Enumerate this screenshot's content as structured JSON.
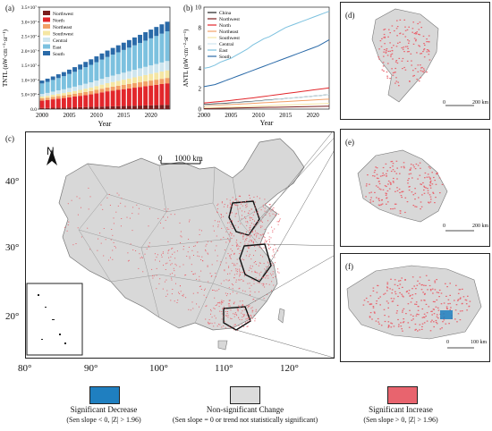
{
  "panel_a": {
    "label": "(a)",
    "ylabel": "TNTL (nW·cm⁻²·sr⁻¹)",
    "xlabel": "Year",
    "y_ticks": [
      "0.0",
      "5.0×10⁶",
      "1.0×10⁷",
      "1.5×10⁷",
      "2.0×10⁷",
      "2.5×10⁷",
      "3.0×10⁷",
      "3.5×10⁷"
    ],
    "x_ticks": [
      "2000",
      "2005",
      "2010",
      "2015",
      "2020"
    ],
    "legend": [
      "Northwest",
      "North",
      "Northeast",
      "Southwest",
      "Central",
      "East",
      "South"
    ],
    "colors": [
      "#7a1e1e",
      "#e2262b",
      "#f2a066",
      "#f5e6a3",
      "#cfe6ef",
      "#7cc1df",
      "#2a6aa8"
    ]
  },
  "panel_b": {
    "label": "(b)",
    "ylabel": "ANTL (nW·cm⁻²·sr⁻¹)",
    "xlabel": "Year",
    "y_ticks": [
      "0",
      "2",
      "4",
      "6",
      "8",
      "10"
    ],
    "x_ticks": [
      "2000",
      "2005",
      "2010",
      "2015",
      "2020"
    ],
    "legend": [
      "China",
      "Northwest",
      "North",
      "Northeast",
      "Southwest",
      "Central",
      "East",
      "South"
    ],
    "colors": [
      "#222222",
      "#7a1e1e",
      "#e2262b",
      "#f2a066",
      "#f5e6a3",
      "#cfe6ef",
      "#7cc1df",
      "#2a6aa8"
    ]
  },
  "chart_data": [
    {
      "type": "bar",
      "stacked": true,
      "categories": [
        2000,
        2001,
        2002,
        2003,
        2004,
        2005,
        2006,
        2007,
        2008,
        2009,
        2010,
        2011,
        2012,
        2013,
        2014,
        2015,
        2016,
        2017,
        2018,
        2019,
        2020,
        2021,
        2022,
        2023
      ],
      "series": [
        {
          "name": "Northwest",
          "values": [
            0.4,
            0.4,
            0.45,
            0.5,
            0.5,
            0.55,
            0.6,
            0.65,
            0.7,
            0.75,
            0.8,
            0.85,
            0.9,
            0.95,
            1.0,
            1.05,
            1.1,
            1.15,
            1.2,
            1.25,
            1.3,
            1.35,
            1.4,
            1.45
          ]
        },
        {
          "name": "North",
          "values": [
            2.5,
            2.7,
            2.9,
            3.1,
            3.3,
            3.5,
            3.7,
            3.9,
            4.1,
            4.3,
            4.6,
            4.9,
            5.2,
            5.4,
            5.6,
            5.8,
            6.0,
            6.2,
            6.4,
            6.6,
            6.8,
            7.0,
            7.2,
            7.4
          ]
        },
        {
          "name": "Northeast",
          "values": [
            0.8,
            0.8,
            0.85,
            0.9,
            0.9,
            0.95,
            1.0,
            1.05,
            1.1,
            1.15,
            1.2,
            1.25,
            1.3,
            1.35,
            1.4,
            1.45,
            1.5,
            1.55,
            1.6,
            1.65,
            1.7,
            1.75,
            1.8,
            1.85
          ]
        },
        {
          "name": "Southwest",
          "values": [
            0.6,
            0.65,
            0.7,
            0.75,
            0.8,
            0.85,
            0.9,
            1.0,
            1.1,
            1.2,
            1.3,
            1.4,
            1.5,
            1.6,
            1.7,
            1.8,
            1.9,
            2.0,
            2.1,
            2.2,
            2.3,
            2.4,
            2.5,
            2.6
          ]
        },
        {
          "name": "Central",
          "values": [
            0.9,
            1.0,
            1.1,
            1.2,
            1.3,
            1.4,
            1.5,
            1.6,
            1.7,
            1.8,
            1.9,
            2.0,
            2.1,
            2.2,
            2.3,
            2.4,
            2.5,
            2.6,
            2.7,
            2.8,
            2.9,
            3.0,
            3.1,
            3.2
          ]
        },
        {
          "name": "East",
          "values": [
            3.6,
            3.8,
            4.0,
            4.2,
            4.5,
            4.8,
            5.1,
            5.4,
            5.7,
            6.0,
            6.3,
            6.6,
            6.9,
            7.2,
            7.5,
            7.8,
            8.1,
            8.4,
            8.7,
            9.0,
            9.3,
            9.6,
            9.9,
            10.2
          ]
        },
        {
          "name": "South",
          "values": [
            1.0,
            1.1,
            1.2,
            1.3,
            1.4,
            1.5,
            1.6,
            1.7,
            1.8,
            1.9,
            2.0,
            2.1,
            2.2,
            2.3,
            2.4,
            2.5,
            2.6,
            2.7,
            2.8,
            2.9,
            3.0,
            3.1,
            3.2,
            3.3
          ]
        }
      ],
      "value_scale": 1000000,
      "xlabel": "Year",
      "ylabel": "TNTL (nW·cm⁻²·sr⁻¹)",
      "ylim": [
        0,
        35000000
      ]
    },
    {
      "type": "line",
      "x": [
        2000,
        2001,
        2002,
        2003,
        2004,
        2005,
        2006,
        2007,
        2008,
        2009,
        2010,
        2011,
        2012,
        2013,
        2014,
        2015,
        2016,
        2017,
        2018,
        2019,
        2020,
        2021,
        2022,
        2023
      ],
      "series": [
        {
          "name": "China",
          "values": [
            0.45,
            0.48,
            0.51,
            0.54,
            0.57,
            0.6,
            0.64,
            0.68,
            0.72,
            0.76,
            0.8,
            0.85,
            0.9,
            0.94,
            0.98,
            1.03,
            1.08,
            1.12,
            1.17,
            1.22,
            1.27,
            1.32,
            1.37,
            1.42
          ]
        },
        {
          "name": "Northwest",
          "values": [
            0.05,
            0.06,
            0.07,
            0.08,
            0.09,
            0.1,
            0.11,
            0.12,
            0.13,
            0.14,
            0.15,
            0.16,
            0.17,
            0.18,
            0.19,
            0.2,
            0.21,
            0.22,
            0.23,
            0.24,
            0.25,
            0.26,
            0.27,
            0.28
          ]
        },
        {
          "name": "North",
          "values": [
            0.6,
            0.65,
            0.7,
            0.75,
            0.8,
            0.86,
            0.92,
            0.98,
            1.04,
            1.1,
            1.17,
            1.24,
            1.31,
            1.38,
            1.45,
            1.52,
            1.59,
            1.66,
            1.73,
            1.8,
            1.87,
            1.94,
            2.01,
            2.08
          ]
        },
        {
          "name": "Northeast",
          "values": [
            0.35,
            0.37,
            0.39,
            0.41,
            0.43,
            0.45,
            0.47,
            0.5,
            0.53,
            0.56,
            0.59,
            0.62,
            0.65,
            0.68,
            0.71,
            0.74,
            0.77,
            0.8,
            0.83,
            0.86,
            0.89,
            0.92,
            0.95,
            0.98
          ]
        },
        {
          "name": "Southwest",
          "values": [
            0.15,
            0.16,
            0.17,
            0.18,
            0.19,
            0.2,
            0.22,
            0.24,
            0.26,
            0.28,
            0.3,
            0.32,
            0.34,
            0.36,
            0.38,
            0.4,
            0.42,
            0.44,
            0.46,
            0.48,
            0.5,
            0.52,
            0.54,
            0.56
          ]
        },
        {
          "name": "Central",
          "values": [
            0.4,
            0.43,
            0.46,
            0.49,
            0.52,
            0.56,
            0.6,
            0.64,
            0.68,
            0.72,
            0.77,
            0.82,
            0.87,
            0.92,
            0.97,
            1.02,
            1.07,
            1.12,
            1.17,
            1.22,
            1.27,
            1.32,
            1.37,
            1.42
          ]
        },
        {
          "name": "East",
          "values": [
            4.0,
            4.1,
            4.3,
            4.6,
            4.8,
            5.0,
            5.3,
            5.6,
            5.9,
            6.3,
            6.6,
            6.9,
            7.1,
            7.4,
            7.7,
            8.0,
            8.2,
            8.4,
            8.6,
            8.8,
            9.0,
            9.2,
            9.4,
            9.6
          ]
        },
        {
          "name": "South",
          "values": [
            2.2,
            2.3,
            2.4,
            2.6,
            2.8,
            3.0,
            3.2,
            3.4,
            3.6,
            3.8,
            4.0,
            4.2,
            4.4,
            4.6,
            4.8,
            5.0,
            5.2,
            5.4,
            5.6,
            5.8,
            6.0,
            6.2,
            6.5,
            6.8
          ]
        }
      ],
      "xlabel": "Year",
      "ylabel": "ANTL (nW·cm⁻²·sr⁻¹)",
      "ylim": [
        0,
        10
      ]
    }
  ],
  "panel_c": {
    "label": "(c)",
    "north_label": "N",
    "scale_label": "1000 km",
    "scale_zero": "0",
    "lat_ticks": [
      "40°",
      "30°",
      "20°"
    ],
    "lon_ticks": [
      "80°",
      "90°",
      "100°",
      "110°",
      "120°"
    ]
  },
  "panel_d": {
    "label": "(d)",
    "scale_zero": "0",
    "scale_label": "200 km"
  },
  "panel_e": {
    "label": "(e)",
    "scale_zero": "0",
    "scale_label": "200 km"
  },
  "panel_f": {
    "label": "(f)",
    "scale_zero": "0",
    "scale_label": "100 km"
  },
  "legend": {
    "items": [
      {
        "title": "Significant Decrease",
        "sub": "(Sen slope < 0, |Z| > 1.96)",
        "color": "#1f7fc0"
      },
      {
        "title": "Non-significant Change",
        "sub": "(Sen slope = 0  or trend not statistically significant)",
        "color": "#dcdcdc"
      },
      {
        "title": "Significant Increase",
        "sub": "(Sen slope > 0, |Z| > 1.96)",
        "color": "#e8646e"
      }
    ]
  }
}
